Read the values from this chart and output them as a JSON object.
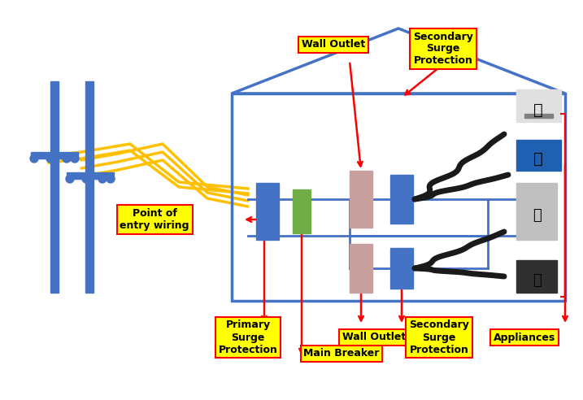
{
  "fig_width": 7.17,
  "fig_height": 4.92,
  "dpi": 100,
  "bg_color": "#ffffff",
  "house_color": "#4472c4",
  "component_blue": "#4472c4",
  "component_green": "#70ad47",
  "component_pink": "#c9a0a0",
  "wire_yellow": "#ffc000",
  "wire_blue": "#4472c4",
  "wire_black": "#1a1a1a",
  "arrow_red": "#ff0000",
  "label_bg": "#ffff00",
  "label_border": "#ff0000",
  "pole_color": "#4472c4",
  "labels": {
    "wall_outlet_top": "Wall Outlet",
    "secondary_surge_top": "Secondary\nSurge\nProtection",
    "point_of_entry": "Point of\nentry wiring",
    "primary_surge": "Primary\nSurge\nProtection",
    "wall_outlet_bot": "Wall Outlet",
    "secondary_surge_bot": "Secondary\nSurge\nProtection",
    "main_breaker": "Main Breaker",
    "appliances": "Appliances"
  }
}
